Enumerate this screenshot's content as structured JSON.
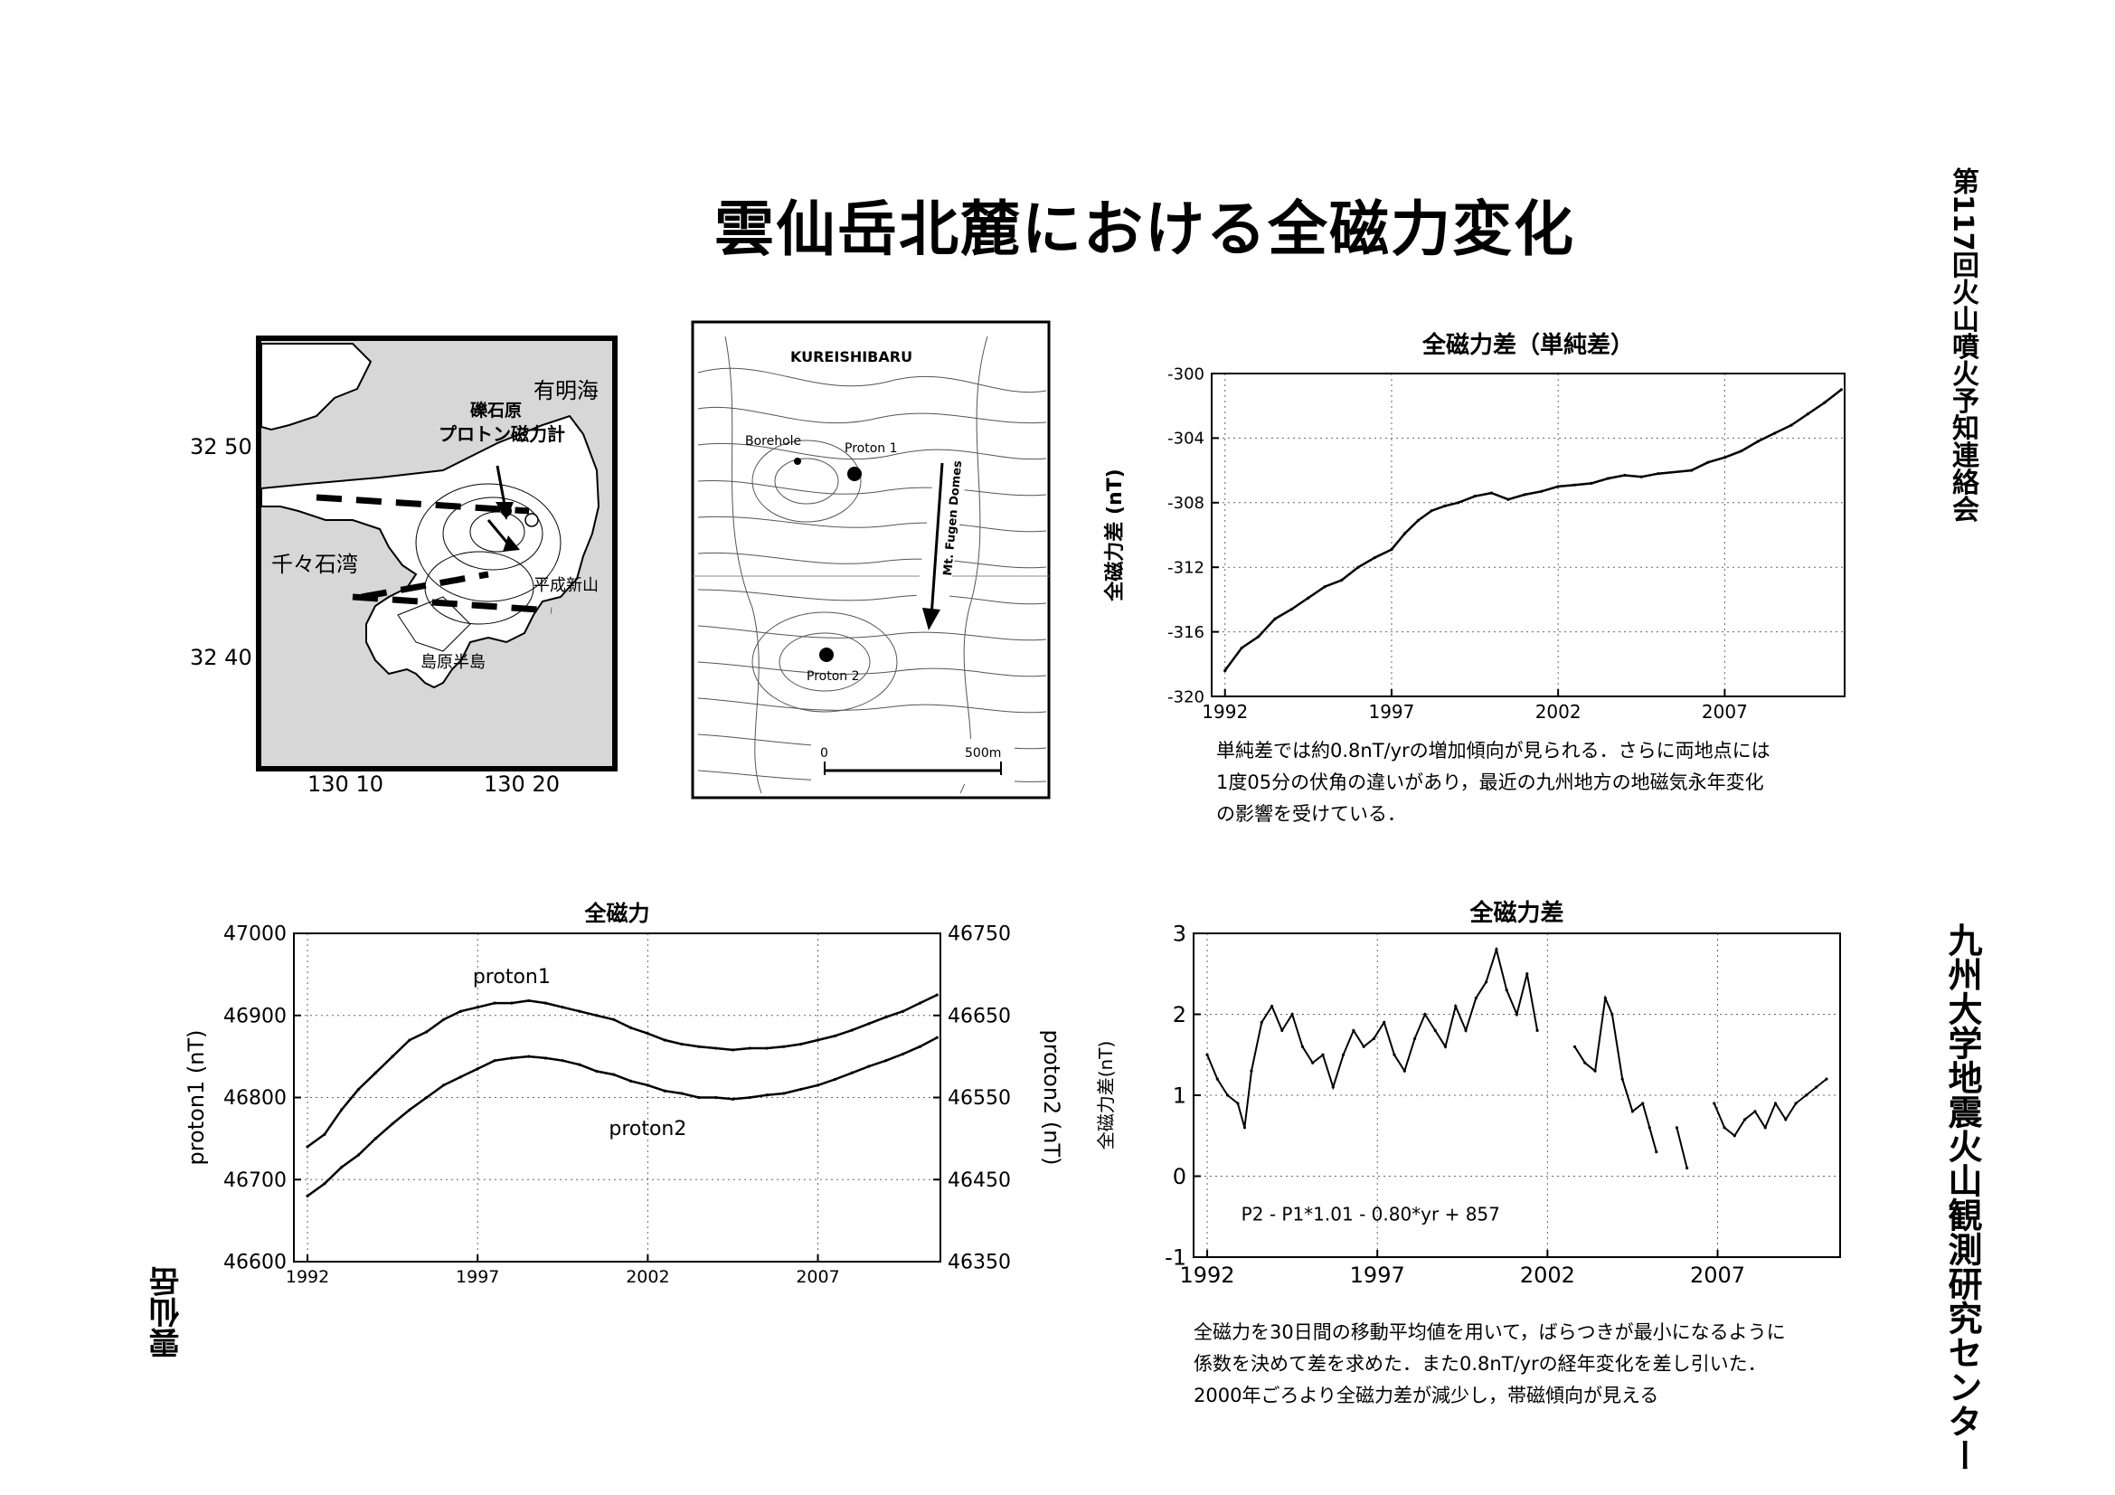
{
  "page": {
    "title": "雲仙岳北麓における全磁力変化",
    "side_top": "第117回火山噴火予知連絡会",
    "side_bottom": "九州大学地震火山観測研究センター",
    "side_left": "雲仙岳",
    "note_top": [
      "単純差では約0.8nT/yrの増加傾向が見られる．さらに両地点には",
      "1度05分の伏角の違いがあり，最近の九州地方の地磁気永年変化",
      "の影響を受けている．"
    ],
    "note_bottom": [
      "全磁力を30日間の移動平均値を用いて，ばらつきが最小になるように",
      "係数を決めて差を求めた．また0.8nT/yrの経年変化を差し引いた．",
      "2000年ごろより全磁力差が減少し，帯磁傾向が見える"
    ]
  },
  "map_region": {
    "sea_north": "有明海",
    "site_label_1": "礫石原",
    "site_label_2": "プロトン磁力計",
    "bay": "千々石湾",
    "dome": "平成新山",
    "peninsula": "島原半島",
    "lat_ticks": [
      "32 50",
      "32 40"
    ],
    "lon_ticks": [
      "130 10",
      "130 20"
    ]
  },
  "map_local": {
    "area_label": "KUREISHIBARU",
    "borehole": "Borehole",
    "proton1": "Proton 1",
    "proton2": "Proton 2",
    "arrow_label": "Mt. Fugen Domes",
    "scale_start": "0",
    "scale_end": "500m"
  },
  "chart_data": [
    {
      "id": "simple-difference",
      "type": "line",
      "title": "全磁力差（単純差）",
      "xlabel": "",
      "ylabel": "全磁力差 (nT)",
      "xlim": [
        1991.6,
        2010.6
      ],
      "ylim": [
        -320,
        -300
      ],
      "xticks": [
        1992,
        1997,
        2002,
        2007
      ],
      "yticks": [
        -300,
        -304,
        -308,
        -312,
        -316,
        -320
      ],
      "grid": true,
      "series": [
        {
          "values": [
            [
              1992.0,
              -318.4
            ],
            [
              1992.5,
              -317.0
            ],
            [
              1993.0,
              -316.3
            ],
            [
              1993.5,
              -315.2
            ],
            [
              1994.0,
              -314.6
            ],
            [
              1994.5,
              -313.9
            ],
            [
              1995.0,
              -313.2
            ],
            [
              1995.5,
              -312.8
            ],
            [
              1996.0,
              -312.0
            ],
            [
              1996.5,
              -311.4
            ],
            [
              1997.0,
              -310.9
            ],
            [
              1997.4,
              -309.9
            ],
            [
              1997.8,
              -309.1
            ],
            [
              1998.2,
              -308.5
            ],
            [
              1998.6,
              -308.2
            ],
            [
              1999.0,
              -308.0
            ],
            [
              1999.5,
              -307.6
            ],
            [
              2000.0,
              -307.4
            ],
            [
              2000.5,
              -307.8
            ],
            [
              2001.0,
              -307.5
            ],
            [
              2001.5,
              -307.3
            ],
            [
              2002.0,
              -307.0
            ],
            [
              2002.5,
              -306.9
            ],
            [
              2003.0,
              -306.8
            ],
            [
              2003.5,
              -306.5
            ],
            [
              2004.0,
              -306.3
            ],
            [
              2004.5,
              -306.4
            ],
            [
              2005.0,
              -306.2
            ],
            [
              2006.0,
              -306.0
            ],
            [
              2006.5,
              -305.5
            ],
            [
              2007.0,
              -305.2
            ],
            [
              2007.5,
              -304.8
            ],
            [
              2008.0,
              -304.2
            ],
            [
              2008.5,
              -303.7
            ],
            [
              2009.0,
              -303.2
            ],
            [
              2009.5,
              -302.5
            ],
            [
              2010.0,
              -301.8
            ],
            [
              2010.5,
              -301.0
            ]
          ]
        }
      ]
    },
    {
      "id": "total-intensity",
      "type": "line",
      "title": "全磁力",
      "xlabel": "",
      "ylabel": "proton1 (nT)",
      "y2label": "proton2 (nT)",
      "xlim": [
        1991.6,
        2010.6
      ],
      "ylim": [
        46600,
        47000
      ],
      "y2lim": [
        46350,
        46750
      ],
      "xticks": [
        1992,
        1997,
        2002,
        2007
      ],
      "yticks": [
        47000,
        46900,
        46800,
        46700,
        46600
      ],
      "y2ticks": [
        46750,
        46650,
        46550,
        46450,
        46350
      ],
      "grid": true,
      "series": [
        {
          "name": "proton1",
          "values": [
            [
              1992.0,
              46740
            ],
            [
              1992.5,
              46755
            ],
            [
              1993.0,
              46785
            ],
            [
              1993.5,
              46810
            ],
            [
              1994.0,
              46830
            ],
            [
              1994.5,
              46850
            ],
            [
              1995.0,
              46870
            ],
            [
              1995.5,
              46880
            ],
            [
              1996.0,
              46895
            ],
            [
              1996.5,
              46905
            ],
            [
              1997.0,
              46910
            ],
            [
              1997.5,
              46915
            ],
            [
              1998.0,
              46915
            ],
            [
              1998.5,
              46918
            ],
            [
              1999.0,
              46915
            ],
            [
              1999.5,
              46910
            ],
            [
              2000.0,
              46905
            ],
            [
              2000.5,
              46900
            ],
            [
              2001.0,
              46895
            ],
            [
              2001.5,
              46885
            ],
            [
              2002.0,
              46878
            ],
            [
              2002.5,
              46870
            ],
            [
              2003.0,
              46865
            ],
            [
              2003.5,
              46862
            ],
            [
              2004.0,
              46860
            ],
            [
              2004.5,
              46858
            ],
            [
              2005.0,
              46860
            ],
            [
              2005.5,
              46860
            ],
            [
              2006.0,
              46862
            ],
            [
              2006.5,
              46865
            ],
            [
              2007.0,
              46870
            ],
            [
              2007.5,
              46875
            ],
            [
              2008.0,
              46882
            ],
            [
              2008.5,
              46890
            ],
            [
              2009.0,
              46898
            ],
            [
              2009.5,
              46905
            ],
            [
              2010.0,
              46915
            ],
            [
              2010.5,
              46925
            ]
          ]
        },
        {
          "name": "proton2",
          "values": [
            [
              1992.0,
              46680
            ],
            [
              1992.5,
              46695
            ],
            [
              1993.0,
              46715
            ],
            [
              1993.5,
              46730
            ],
            [
              1994.0,
              46750
            ],
            [
              1994.5,
              46768
            ],
            [
              1995.0,
              46785
            ],
            [
              1995.5,
              46800
            ],
            [
              1996.0,
              46815
            ],
            [
              1996.5,
              46825
            ],
            [
              1997.0,
              46835
            ],
            [
              1997.5,
              46845
            ],
            [
              1998.0,
              46848
            ],
            [
              1998.5,
              46850
            ],
            [
              1999.0,
              46848
            ],
            [
              1999.5,
              46845
            ],
            [
              2000.0,
              46840
            ],
            [
              2000.5,
              46832
            ],
            [
              2001.0,
              46828
            ],
            [
              2001.5,
              46820
            ],
            [
              2002.0,
              46815
            ],
            [
              2002.5,
              46808
            ],
            [
              2003.0,
              46805
            ],
            [
              2003.5,
              46800
            ],
            [
              2004.0,
              46800
            ],
            [
              2004.5,
              46798
            ],
            [
              2005.0,
              46800
            ],
            [
              2005.5,
              46803
            ],
            [
              2006.0,
              46805
            ],
            [
              2006.5,
              46810
            ],
            [
              2007.0,
              46815
            ],
            [
              2007.5,
              46822
            ],
            [
              2008.0,
              46830
            ],
            [
              2008.5,
              46838
            ],
            [
              2009.0,
              46845
            ],
            [
              2009.5,
              46853
            ],
            [
              2010.0,
              46862
            ],
            [
              2010.5,
              46873
            ]
          ]
        }
      ]
    },
    {
      "id": "corrected-difference",
      "type": "line",
      "title": "全磁力差",
      "xlabel": "",
      "ylabel": "全磁力差(nT)",
      "xlim": [
        1991.6,
        2010.6
      ],
      "ylim": [
        -1,
        3
      ],
      "xticks": [
        1992,
        1997,
        2002,
        2007
      ],
      "yticks": [
        3,
        2,
        1,
        0,
        -1
      ],
      "grid": true,
      "annotation": "P2 - P1*1.01 - 0.80*yr + 857",
      "series": [
        {
          "values": [
            [
              1992.0,
              1.5
            ],
            [
              1992.3,
              1.2
            ],
            [
              1992.6,
              1.0
            ],
            [
              1992.9,
              0.9
            ],
            [
              1993.1,
              0.6
            ],
            [
              1993.3,
              1.3
            ],
            [
              1993.6,
              1.9
            ],
            [
              1993.9,
              2.1
            ],
            [
              1994.2,
              1.8
            ],
            [
              1994.5,
              2.0
            ],
            [
              1994.8,
              1.6
            ],
            [
              1995.1,
              1.4
            ],
            [
              1995.4,
              1.5
            ],
            [
              1995.7,
              1.1
            ],
            [
              1996.0,
              1.5
            ],
            [
              1996.3,
              1.8
            ],
            [
              1996.6,
              1.6
            ],
            [
              1996.9,
              1.7
            ],
            [
              1997.2,
              1.9
            ],
            [
              1997.5,
              1.5
            ],
            [
              1997.8,
              1.3
            ],
            [
              1998.1,
              1.7
            ],
            [
              1998.4,
              2.0
            ],
            [
              1998.7,
              1.8
            ],
            [
              1999.0,
              1.6
            ],
            [
              1999.3,
              2.1
            ],
            [
              1999.6,
              1.8
            ],
            [
              1999.9,
              2.2
            ],
            [
              2000.2,
              2.4
            ],
            [
              2000.5,
              2.8
            ],
            [
              2000.8,
              2.3
            ],
            [
              2001.1,
              2.0
            ],
            [
              2001.4,
              2.5
            ],
            [
              2001.7,
              1.8
            ],
            [
              2002.0,
              null
            ],
            [
              2002.8,
              1.6
            ],
            [
              2003.1,
              1.4
            ],
            [
              2003.4,
              1.3
            ],
            [
              2003.7,
              2.2
            ],
            [
              2003.9,
              2.0
            ],
            [
              2004.2,
              1.2
            ],
            [
              2004.5,
              0.8
            ],
            [
              2004.8,
              0.9
            ],
            [
              2005.0,
              0.6
            ],
            [
              2005.2,
              0.3
            ],
            [
              2005.4,
              null
            ],
            [
              2005.8,
              0.6
            ],
            [
              2006.1,
              0.1
            ],
            [
              2006.3,
              null
            ],
            [
              2006.9,
              0.9
            ],
            [
              2007.2,
              0.6
            ],
            [
              2007.5,
              0.5
            ],
            [
              2007.8,
              0.7
            ],
            [
              2008.1,
              0.8
            ],
            [
              2008.4,
              0.6
            ],
            [
              2008.7,
              0.9
            ],
            [
              2009.0,
              0.7
            ],
            [
              2009.3,
              0.9
            ],
            [
              2009.6,
              1.0
            ],
            [
              2009.9,
              1.1
            ],
            [
              2010.2,
              1.2
            ]
          ]
        }
      ]
    }
  ]
}
